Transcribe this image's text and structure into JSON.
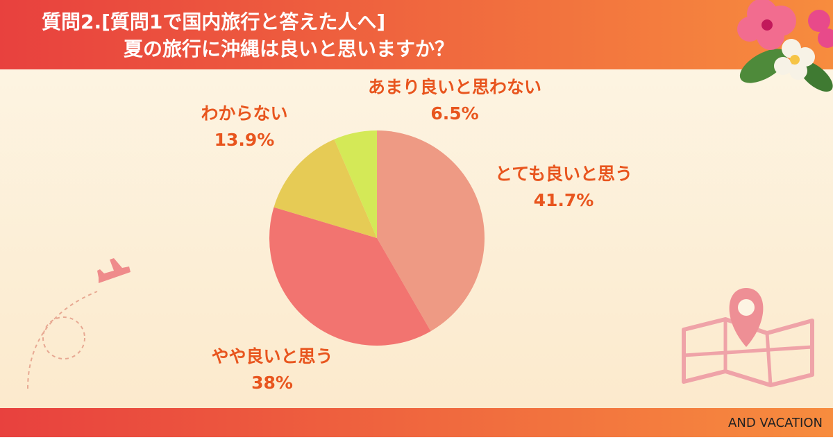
{
  "chart_data": {
    "type": "pie",
    "title": "質問2.[質問1で国内旅行と答えた人へ]",
    "subtitle": "夏の旅行に沖縄は良いと思いますか？",
    "categories": [
      "とても良いと思う",
      "やや良いと思う",
      "わからない",
      "あまり良いと思わない"
    ],
    "values": [
      41.7,
      38,
      13.9,
      6.5
    ],
    "value_labels": [
      "41.7%",
      "38%",
      "13.9%",
      "6.5%"
    ],
    "colors": [
      "#EE9A84",
      "#F27470",
      "#E6CB55",
      "#D4E957"
    ],
    "footer": "AND VACATION"
  }
}
